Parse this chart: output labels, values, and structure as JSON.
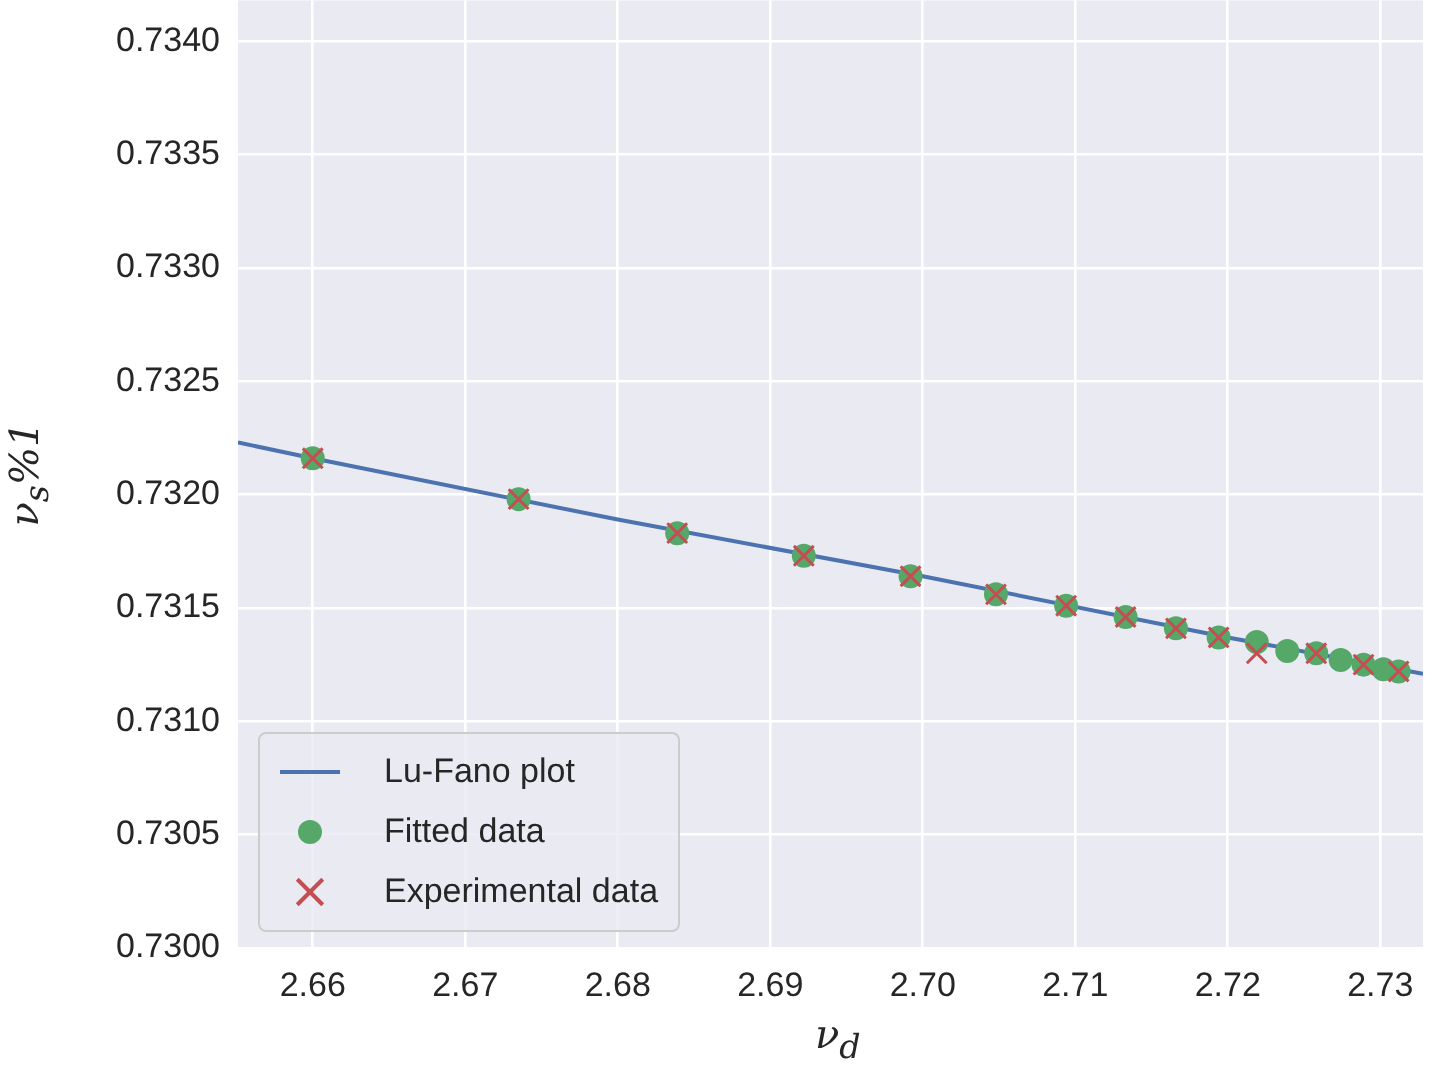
{
  "chart_data": {
    "type": "line",
    "xlabel": "ν$_{d}$",
    "ylabel": "ν$_{s}$%1",
    "xlim": [
      2.6551,
      2.7328
    ],
    "xticks": [
      {
        "value": 2.66,
        "label": "2.66"
      },
      {
        "value": 2.67,
        "label": "2.67"
      },
      {
        "value": 2.68,
        "label": "2.68"
      },
      {
        "value": 2.69,
        "label": "2.69"
      },
      {
        "value": 2.7,
        "label": "2.70"
      },
      {
        "value": 2.71,
        "label": "2.71"
      },
      {
        "value": 2.72,
        "label": "2.72"
      },
      {
        "value": 2.73,
        "label": "2.73"
      }
    ],
    "ylim": [
      0.73,
      0.73418
    ],
    "yticks": [
      {
        "value": 0.73,
        "label": "0.7300"
      },
      {
        "value": 0.7305,
        "label": "0.7305"
      },
      {
        "value": 0.731,
        "label": "0.7310"
      },
      {
        "value": 0.7315,
        "label": "0.7315"
      },
      {
        "value": 0.732,
        "label": "0.7320"
      },
      {
        "value": 0.7325,
        "label": "0.7325"
      },
      {
        "value": 0.733,
        "label": "0.7330"
      },
      {
        "value": 0.7335,
        "label": "0.7335"
      },
      {
        "value": 0.734,
        "label": "0.7340"
      }
    ],
    "grid": true,
    "legend": "bottom left",
    "series": [
      {
        "name": "Lu-Fano plot",
        "type": "line",
        "color": "#4c72b0",
        "marker": "none",
        "x": [
          2.6551,
          2.66,
          2.68,
          2.7,
          2.72,
          2.7328
        ],
        "values": [
          0.73223,
          0.73216,
          0.73189,
          0.73164,
          0.73137,
          0.73121
        ]
      },
      {
        "name": "Fitted data",
        "type": "scatter",
        "color": "#55a868",
        "marker": "circle",
        "x": [
          2.66,
          2.6735,
          2.6839,
          2.6922,
          2.6992,
          2.7048,
          2.7094,
          2.7133,
          2.7166,
          2.7194,
          2.7219,
          2.7239,
          2.7258,
          2.7274,
          2.7289,
          2.7302,
          2.7312
        ],
        "values": [
          0.73216,
          0.73198,
          0.73183,
          0.73173,
          0.73164,
          0.73156,
          0.73151,
          0.73146,
          0.73141,
          0.73137,
          0.73135,
          0.73131,
          0.7313,
          0.73127,
          0.73125,
          0.73123,
          0.73122
        ]
      },
      {
        "name": "Experimental data",
        "type": "scatter",
        "color": "#c44e52",
        "marker": "cross",
        "x": [
          2.66,
          2.6735,
          2.6839,
          2.6922,
          2.6992,
          2.7048,
          2.7094,
          2.7133,
          2.7166,
          2.7194,
          2.7219,
          2.7258,
          2.7289,
          2.7312
        ],
        "values": [
          0.73216,
          0.73198,
          0.73183,
          0.73173,
          0.73164,
          0.73156,
          0.73151,
          0.73146,
          0.73141,
          0.73137,
          0.7313,
          0.7313,
          0.73125,
          0.73122
        ]
      }
    ]
  }
}
